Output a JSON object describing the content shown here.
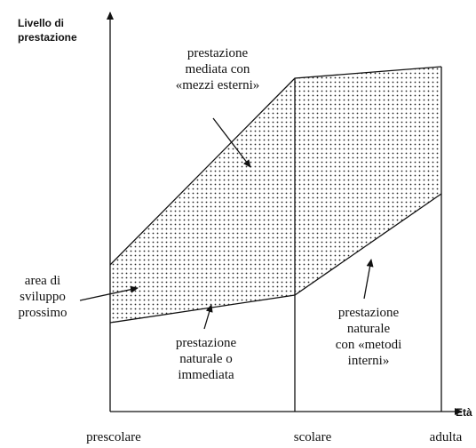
{
  "y_axis_label": [
    "Livello di",
    "prestazione"
  ],
  "x_axis_label": "Età",
  "categories": [
    "prescolare",
    "scolare",
    "adulta"
  ],
  "annotations": [
    {
      "lines": [
        "prestazione",
        "mediata con",
        "«mezzi esterni»"
      ]
    },
    {
      "lines": [
        "area di",
        "sviluppo",
        "prossimo"
      ]
    },
    {
      "lines": [
        "prestazione",
        "naturale o",
        "immediata"
      ]
    },
    {
      "lines": [
        "prestazione",
        "naturale",
        "con «metodi",
        "interni»"
      ]
    }
  ]
}
